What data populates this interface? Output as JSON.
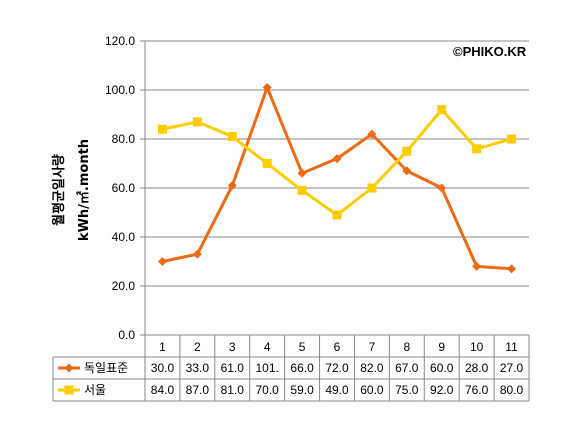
{
  "watermark": "©PHIKO.KR",
  "colors": {
    "germany": "#EE6A15",
    "seoul": "#FFCC00",
    "grid": "#888888",
    "axis": "#888888"
  },
  "chart_data": {
    "type": "line",
    "categories": [
      "1",
      "2",
      "3",
      "4",
      "5",
      "6",
      "7",
      "8",
      "9",
      "10",
      "11"
    ],
    "ylabel_line1": "월평균일사량",
    "ylabel_line2": "kWh/㎡.month",
    "ylim": [
      0,
      120
    ],
    "y_ticks": [
      "0.0",
      "20.0",
      "40.0",
      "60.0",
      "80.0",
      "100.0",
      "120.0"
    ],
    "grid": true,
    "legend": "data-table",
    "series": [
      {
        "name": "독일표준",
        "marker": "diamond",
        "color": "#EE6A15",
        "values": [
          30,
          33,
          61,
          101,
          66,
          72,
          82,
          67,
          60,
          28,
          27
        ],
        "labels": [
          "30.0",
          "33.0",
          "61.0",
          "101.",
          "66.0",
          "72.0",
          "82.0",
          "67.0",
          "60.0",
          "28.0",
          "27.0"
        ]
      },
      {
        "name": "서울",
        "marker": "square",
        "color": "#FFCC00",
        "values": [
          84,
          87,
          81,
          70,
          59,
          49,
          60,
          75,
          92,
          76,
          80
        ],
        "labels": [
          "84.0",
          "87.0",
          "81.0",
          "70.0",
          "59.0",
          "49.0",
          "60.0",
          "75.0",
          "92.0",
          "76.0",
          "80.0"
        ]
      }
    ]
  }
}
